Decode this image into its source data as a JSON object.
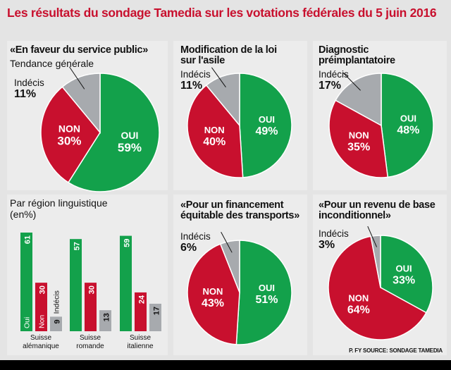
{
  "title": "Les résultats du sondage Tamedia sur les votations fédérales du 5 juin 2016",
  "footer": "P. FY SOURCE: SONDAGE TAMEDIA",
  "colors": {
    "oui": "#13a14b",
    "non": "#c8102e",
    "indecis": "#a7aaae"
  },
  "labels": {
    "oui": "OUI",
    "non": "NON",
    "indecis": "Indécis"
  },
  "chart_data": [
    {
      "type": "pie",
      "title": "«En faveur du service public»",
      "subtitle": "Tendance générale",
      "categories": [
        "OUI",
        "NON",
        "Indécis"
      ],
      "values": [
        59,
        30,
        11
      ],
      "display": [
        "59%",
        "30%",
        "11%"
      ]
    },
    {
      "type": "pie",
      "title": "Modification de la loi sur l'asile",
      "categories": [
        "OUI",
        "NON",
        "Indécis"
      ],
      "values": [
        49,
        40,
        11
      ],
      "display": [
        "49%",
        "40%",
        "11%"
      ]
    },
    {
      "type": "pie",
      "title": "Diagnostic préimplantatoire",
      "categories": [
        "OUI",
        "NON",
        "Indécis"
      ],
      "values": [
        48,
        35,
        17
      ],
      "display": [
        "48%",
        "35%",
        "17%"
      ]
    },
    {
      "type": "pie",
      "title": "«Pour un financement équitable des transports»",
      "categories": [
        "OUI",
        "NON",
        "Indécis"
      ],
      "values": [
        51,
        43,
        6
      ],
      "display": [
        "51%",
        "43%",
        "6%"
      ]
    },
    {
      "type": "pie",
      "title": "«Pour un revenu de base inconditionnel»",
      "categories": [
        "OUI",
        "NON",
        "Indécis"
      ],
      "values": [
        33,
        64,
        3
      ],
      "display": [
        "33%",
        "64%",
        "3%"
      ]
    },
    {
      "type": "bar",
      "title": "Par région linguistique (en%)",
      "categories": [
        "Suisse alémanique",
        "Suisse romande",
        "Suisse italienne"
      ],
      "series": [
        {
          "name": "Oui",
          "values": [
            61,
            57,
            59
          ]
        },
        {
          "name": "Non",
          "values": [
            30,
            30,
            24
          ]
        },
        {
          "name": "Indécis",
          "values": [
            9,
            13,
            17
          ]
        }
      ],
      "ylim": [
        0,
        65
      ]
    }
  ]
}
